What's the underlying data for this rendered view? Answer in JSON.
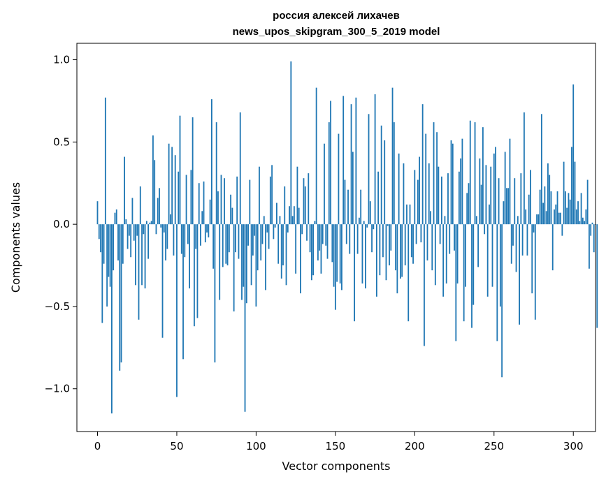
{
  "chart_data": {
    "type": "bar",
    "title": [
      "россия алексей лихачев",
      "news_upos_skipgram_300_5_2019 model"
    ],
    "xlabel": "Vector components",
    "ylabel": "Components values",
    "xlim": [
      -13,
      314
    ],
    "ylim": [
      -1.26,
      1.1
    ],
    "xticks": [
      0,
      50,
      100,
      150,
      200,
      250,
      300
    ],
    "xtick_labels": [
      "0",
      "50",
      "100",
      "150",
      "200",
      "250",
      "300"
    ],
    "yticks": [
      -1.0,
      -0.5,
      0.0,
      0.5,
      1.0
    ],
    "ytick_labels": [
      "−1.0",
      "−0.5",
      "0.0",
      "0.5",
      "1.0"
    ],
    "grid": false,
    "bar_color": "#1f77b4",
    "values": [
      0.14,
      -0.09,
      -0.17,
      -0.6,
      -0.24,
      0.77,
      -0.5,
      -0.32,
      -0.38,
      -1.15,
      -0.28,
      0.07,
      0.09,
      -0.22,
      -0.89,
      -0.84,
      -0.24,
      0.41,
      0.03,
      -0.15,
      -0.07,
      -0.2,
      0.16,
      -0.1,
      -0.37,
      -0.07,
      -0.58,
      0.23,
      -0.37,
      -0.06,
      -0.39,
      0.02,
      -0.21,
      0.01,
      0.02,
      0.54,
      0.39,
      -0.06,
      0.16,
      0.22,
      -0.02,
      -0.69,
      -0.05,
      -0.22,
      -0.15,
      0.49,
      0.06,
      0.47,
      -0.19,
      0.42,
      -1.05,
      0.32,
      0.66,
      -0.18,
      -0.82,
      -0.2,
      0.3,
      -0.12,
      -0.39,
      0.33,
      0.65,
      -0.62,
      -0.15,
      -0.57,
      0.25,
      -0.13,
      0.08,
      0.26,
      -0.11,
      -0.05,
      -0.08,
      0.15,
      0.76,
      -0.27,
      -0.84,
      0.62,
      0.2,
      -0.46,
      0.3,
      -0.26,
      0.28,
      -0.24,
      -0.25,
      -0.17,
      0.18,
      0.1,
      -0.53,
      -0.17,
      0.29,
      -0.21,
      0.68,
      -0.46,
      -0.38,
      -1.14,
      -0.48,
      -0.13,
      0.27,
      -0.37,
      -0.19,
      -0.07,
      -0.5,
      -0.28,
      0.35,
      -0.22,
      -0.12,
      0.05,
      -0.4,
      -0.05,
      -0.15,
      0.29,
      0.36,
      -0.09,
      -0.02,
      0.13,
      -0.24,
      0.05,
      -0.33,
      -0.25,
      0.23,
      -0.37,
      -0.05,
      0.11,
      0.99,
      0.05,
      0.11,
      -0.3,
      0.35,
      0.1,
      -0.42,
      -0.06,
      0.28,
      0.23,
      -0.1,
      0.31,
      -0.17,
      -0.34,
      -0.31,
      0.02,
      0.83,
      -0.22,
      -0.16,
      -0.3,
      -0.12,
      0.49,
      -0.13,
      -0.21,
      0.62,
      0.75,
      -0.23,
      -0.38,
      -0.52,
      -0.35,
      0.55,
      -0.36,
      -0.4,
      0.78,
      0.27,
      -0.12,
      0.21,
      -0.18,
      0.73,
      0.44,
      -0.59,
      0.77,
      -0.18,
      0.04,
      0.21,
      -0.36,
      0.02,
      -0.39,
      -0.02,
      0.67,
      0.14,
      -0.17,
      -0.03,
      0.79,
      -0.44,
      0.32,
      -0.31,
      0.6,
      -0.2,
      0.51,
      -0.34,
      -0.01,
      -0.25,
      -0.16,
      0.83,
      0.62,
      -0.28,
      -0.42,
      0.43,
      -0.33,
      -0.32,
      0.37,
      -0.25,
      0.12,
      -0.59,
      0.12,
      -0.2,
      -0.24,
      0.33,
      -0.12,
      0.27,
      0.41,
      -0.11,
      0.73,
      -0.74,
      0.55,
      -0.22,
      0.37,
      0.08,
      -0.28,
      0.62,
      -0.37,
      0.56,
      0.35,
      -0.12,
      0.29,
      -0.44,
      0.05,
      -0.36,
      0.31,
      -0.18,
      0.51,
      0.49,
      -0.16,
      -0.71,
      -0.36,
      0.32,
      0.4,
      0.52,
      -0.59,
      -0.38,
      0.19,
      0.25,
      0.63,
      -0.63,
      -0.49,
      0.62,
      0.05,
      -0.26,
      0.4,
      0.24,
      0.59,
      -0.06,
      0.36,
      -0.44,
      0.12,
      0.35,
      -0.38,
      0.43,
      0.47,
      -0.71,
      0.28,
      -0.5,
      -0.93,
      0.14,
      0.44,
      0.22,
      0.22,
      0.52,
      -0.24,
      -0.13,
      0.28,
      -0.29,
      0.05,
      -0.61,
      0.31,
      -0.19,
      0.68,
      0.09,
      -0.19,
      0.18,
      0.33,
      -0.42,
      -0.05,
      -0.58,
      0.06,
      0.06,
      0.21,
      0.67,
      0.13,
      0.23,
      0.08,
      0.37,
      0.3,
      0.2,
      -0.28,
      0.09,
      0.12,
      0.2,
      0.07,
      0.07,
      -0.07,
      0.38,
      0.2,
      0.1,
      0.19,
      0.15,
      0.47,
      0.85,
      0.38,
      0.09,
      0.14,
      0.02,
      0.19,
      0.04,
      0.02,
      0.09,
      0.27,
      -0.27,
      -0.07,
      0.01,
      -0.17
    ],
    "extra_values": [
      0,
      -0.63
    ]
  }
}
